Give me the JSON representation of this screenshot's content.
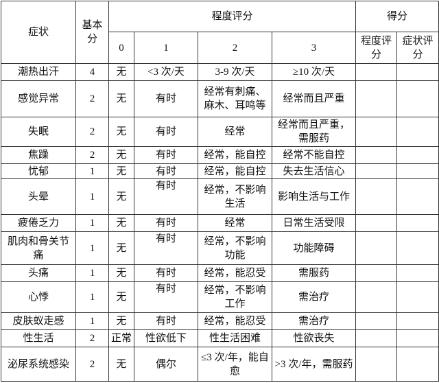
{
  "header": {
    "symptom": "症状",
    "base_score": "基本分",
    "degree_score": "程度评分",
    "degree_levels": [
      "0",
      "1",
      "2",
      "3"
    ],
    "score": "得分",
    "score_cols": [
      "程度评分",
      "症状评分"
    ]
  },
  "rows": [
    [
      "潮热出汗",
      "4",
      "无",
      "<3 次/天",
      "3-9 次/天",
      "≥10 次/天"
    ],
    [
      "感觉异常",
      "2",
      "无",
      "有时",
      "经常有刺痛、麻木、耳鸣等",
      "经常而且严重"
    ],
    [
      "失眠",
      "2",
      "无",
      "有时",
      "经常",
      "经常而且严重，需服药"
    ],
    [
      "焦躁",
      "2",
      "无",
      "有时",
      "经常，能自控",
      "经常不能自控"
    ],
    [
      "忧郁",
      "1",
      "无",
      "有时",
      "经常，能自控",
      "失去生活信心"
    ],
    [
      "头晕",
      "1",
      "无",
      "有时",
      "经常，不影响生活",
      "影响生活与工作"
    ],
    [
      "疲倦乏力",
      "1",
      "无",
      "有时",
      "经常",
      "日常生活受限"
    ],
    [
      "肌肉和骨关节痛",
      "1",
      "无",
      "有时",
      "经常，不影响功能",
      "功能障碍"
    ],
    [
      "头痛",
      "1",
      "无",
      "有时",
      "经常，能忍受",
      "需服药"
    ],
    [
      "心悸",
      "1",
      "无",
      "有时",
      "经常，不影响工作",
      "需治疗"
    ],
    [
      "皮肤蚁走感",
      "1",
      "无",
      "有时",
      "经常，能忍受",
      "需治疗"
    ],
    [
      "性生活",
      "2",
      "正常",
      "性欲低下",
      "性生活困难",
      "性欲丧失"
    ],
    [
      "泌尿系统感染",
      "2",
      "无",
      "偶尔",
      "≤3 次/年，能自愈",
      ">3 次/年，需服药"
    ]
  ]
}
